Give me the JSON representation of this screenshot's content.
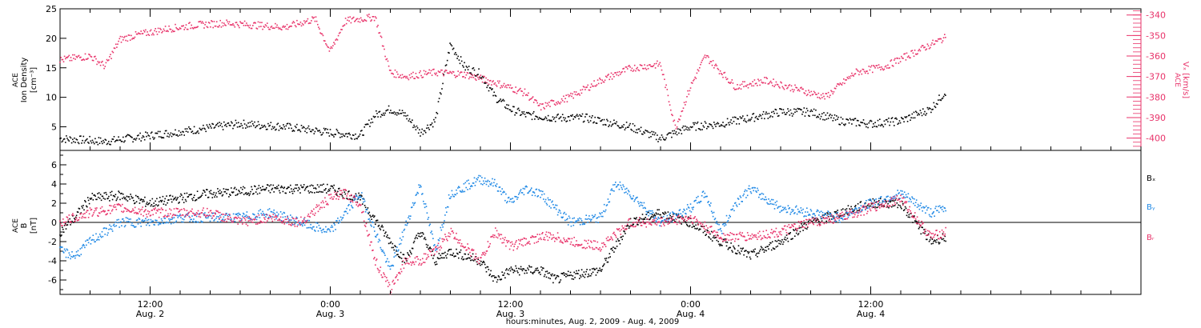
{
  "colors": {
    "black": "#000000",
    "pink": "#e8336a",
    "blue": "#1e88e5",
    "axis": "#000000"
  },
  "footer": {
    "xlabel": "hours:minutes, Aug.  2, 2009 - Aug.  4, 2009"
  },
  "chart_data": [
    {
      "type": "scatter",
      "panel": "top",
      "left_axis": {
        "label_line1": "ACE",
        "label_line2": "Ion Density",
        "label_line3": "[cm⁻³]",
        "range": [
          1,
          25
        ],
        "ticks": [
          5,
          10,
          15,
          20,
          25
        ]
      },
      "right_axis": {
        "label_line1": "ACE",
        "label_line2": "Vₓ [km/s]",
        "range": [
          -406,
          -337
        ],
        "ticks": [
          -340,
          -350,
          -360,
          -370,
          -380,
          -390,
          -400
        ]
      },
      "series": [
        {
          "name": "Ion Density",
          "axis": "left",
          "color_key": "black",
          "x_hours": [
            0,
            3,
            6,
            9,
            12,
            15,
            18,
            20,
            21,
            22,
            23,
            24,
            25,
            26,
            27,
            28,
            29,
            30,
            31,
            33,
            35,
            36,
            38,
            40,
            42,
            44,
            46,
            48,
            50,
            52,
            54,
            56,
            58,
            59
          ],
          "y": [
            3,
            2.5,
            3.5,
            4.5,
            5.5,
            5,
            4,
            3.5,
            7,
            8,
            7,
            4,
            6,
            19,
            15,
            14,
            10,
            8,
            7,
            6.5,
            6.5,
            6,
            5,
            3,
            5,
            5.5,
            6.5,
            7.5,
            7.5,
            6,
            5.5,
            6,
            8,
            11
          ]
        },
        {
          "name": "Vx",
          "axis": "right",
          "color_key": "pink",
          "x_hours": [
            0,
            2,
            3,
            4,
            5,
            7,
            9,
            11,
            13,
            15,
            17,
            18,
            19,
            21,
            22,
            23,
            25,
            27,
            29,
            31,
            32,
            34,
            36,
            38,
            40,
            41,
            42,
            43,
            45,
            47,
            49,
            51,
            53,
            55,
            57,
            59
          ],
          "y": [
            -362,
            -360,
            -365,
            -352,
            -350,
            -347,
            -345,
            -344,
            -345,
            -346,
            -342,
            -358,
            -343,
            -341,
            -368,
            -370,
            -368,
            -369,
            -373,
            -378,
            -385,
            -380,
            -372,
            -366,
            -364,
            -395,
            -375,
            -360,
            -375,
            -372,
            -376,
            -380,
            -368,
            -365,
            -358,
            -351
          ]
        }
      ]
    },
    {
      "type": "scatter",
      "panel": "bottom",
      "left_axis": {
        "label_line1": "ACE",
        "label_line2": "B",
        "label_line3": "[nT]",
        "range": [
          -7.5,
          7.5
        ],
        "ticks": [
          -6,
          -4,
          -2,
          0,
          2,
          4,
          6
        ]
      },
      "zero_line": true,
      "series": [
        {
          "name": "Bₓ",
          "color_key": "black",
          "x_hours": [
            0,
            1,
            2,
            4,
            6,
            8,
            10,
            12,
            14,
            16,
            18,
            20,
            22,
            23,
            24,
            25,
            26,
            28,
            29,
            30,
            31,
            32,
            33,
            34,
            36,
            38,
            40,
            42,
            44,
            46,
            48,
            50,
            52,
            54,
            56,
            58,
            59
          ],
          "y": [
            -1,
            0.5,
            2.5,
            2.8,
            2,
            2.5,
            3,
            3.2,
            3.5,
            3.5,
            3.5,
            2.5,
            -2,
            -4,
            -1,
            -4,
            -3,
            -4,
            -6,
            -5,
            -5,
            -5,
            -6,
            -5.5,
            -5,
            0,
            1,
            0,
            -2,
            -3.5,
            -2,
            0,
            1,
            2,
            2,
            -2,
            -1.5
          ]
        },
        {
          "name": "Bᵧ",
          "color_key": "blue",
          "x_hours": [
            0,
            1,
            2,
            4,
            6,
            8,
            10,
            12,
            14,
            16,
            18,
            19,
            20,
            22,
            24,
            25,
            26,
            28,
            29,
            30,
            31,
            32,
            33,
            34,
            36,
            37,
            38,
            40,
            42,
            43,
            44,
            45,
            46,
            48,
            50,
            52,
            54,
            56,
            58,
            59
          ],
          "y": [
            -3,
            -3.5,
            -2,
            0,
            0,
            0.5,
            0.5,
            0.5,
            1,
            0,
            -1,
            1,
            3,
            -5,
            4,
            -3,
            3,
            4.5,
            4,
            2,
            3.5,
            3,
            1.5,
            0,
            0.5,
            4,
            3,
            0,
            1.5,
            3,
            -1,
            2,
            3.5,
            1.5,
            1,
            0.5,
            2,
            3,
            1,
            1.5
          ]
        },
        {
          "name": "Bᵣ",
          "color_key": "pink",
          "x_hours": [
            0,
            1,
            2,
            4,
            6,
            8,
            10,
            12,
            14,
            16,
            18,
            19,
            20,
            21,
            22,
            23,
            24,
            25,
            26,
            28,
            29,
            30,
            31,
            32,
            33,
            34,
            36,
            38,
            40,
            42,
            44,
            46,
            48,
            50,
            52,
            54,
            56,
            58,
            59
          ],
          "y": [
            0,
            0.5,
            1,
            1.5,
            1,
            1,
            1,
            0,
            0.5,
            0,
            2.5,
            3,
            2,
            -4,
            -7,
            -4,
            -4,
            -3,
            -1,
            -4,
            -1,
            -2.5,
            -2,
            -1.5,
            -1.5,
            -2,
            -2.5,
            0,
            0,
            0.5,
            -1.5,
            -1.5,
            -1,
            0,
            0.5,
            1.5,
            2.5,
            -1.5,
            -1
          ]
        }
      ],
      "legend": [
        "Bₓ",
        "Bᵧ",
        "Bᵣ"
      ],
      "legend_position": "right"
    }
  ],
  "x_axis": {
    "range_hours": [
      0,
      72
    ],
    "major_ticks": [
      {
        "hours": 6,
        "time": "12:00",
        "date": "Aug. 2"
      },
      {
        "hours": 18,
        "time": "0:00",
        "date": "Aug. 3"
      },
      {
        "hours": 30,
        "time": "12:00",
        "date": "Aug. 3"
      },
      {
        "hours": 42,
        "time": "0:00",
        "date": "Aug. 4"
      },
      {
        "hours": 54,
        "time": "12:00",
        "date": "Aug. 4"
      }
    ]
  }
}
